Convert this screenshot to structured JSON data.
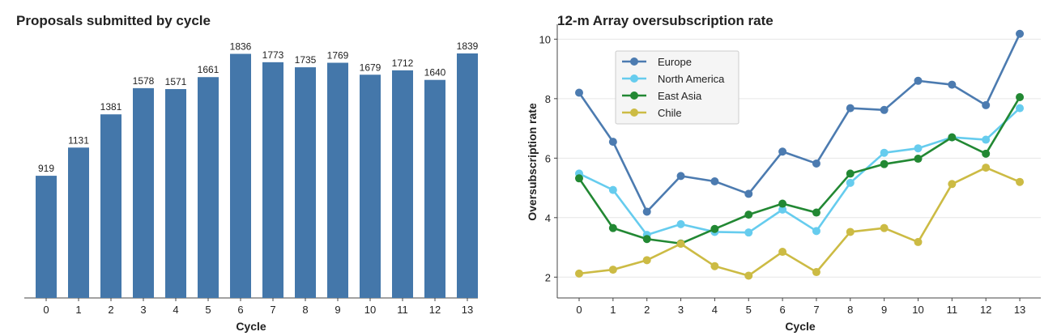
{
  "chart_data": [
    {
      "type": "bar",
      "title": "Proposals submitted by cycle",
      "xlabel": "Cycle",
      "ylabel": "",
      "categories": [
        "0",
        "1",
        "2",
        "3",
        "4",
        "5",
        "6",
        "7",
        "8",
        "9",
        "10",
        "11",
        "12",
        "13"
      ],
      "values": [
        919,
        1131,
        1381,
        1578,
        1571,
        1661,
        1836,
        1773,
        1735,
        1769,
        1679,
        1712,
        1640,
        1839
      ],
      "value_labels": [
        "919",
        "1131",
        "1381",
        "1578",
        "1571",
        "1661",
        "1836",
        "1773",
        "1735",
        "1769",
        "1679",
        "1712",
        "1640",
        "1839"
      ],
      "ylim": [
        0,
        1900
      ],
      "grid": false,
      "colors": {
        "bar": "#4477aa"
      }
    },
    {
      "type": "line",
      "title": "12-m Array oversubscription rate",
      "xlabel": "Cycle",
      "ylabel": "Oversubscription rate",
      "x": [
        0,
        1,
        2,
        3,
        4,
        5,
        6,
        7,
        8,
        9,
        10,
        11,
        12,
        13
      ],
      "xticks": [
        "0",
        "1",
        "2",
        "3",
        "4",
        "5",
        "6",
        "7",
        "8",
        "9",
        "10",
        "11",
        "12",
        "13"
      ],
      "yticks": [
        "2",
        "4",
        "6",
        "8",
        "10"
      ],
      "ylim": [
        1.3,
        10.5
      ],
      "grid": true,
      "legend_position": "top-left",
      "series": [
        {
          "name": "Europe",
          "color": "#4c7bb0",
          "values": [
            8.2,
            6.55,
            4.2,
            5.4,
            5.22,
            4.8,
            6.22,
            5.82,
            7.68,
            7.62,
            8.6,
            8.47,
            7.78,
            10.18
          ]
        },
        {
          "name": "North America",
          "color": "#66ccee",
          "values": [
            5.48,
            4.93,
            3.42,
            3.78,
            3.52,
            3.5,
            4.27,
            3.55,
            5.17,
            6.18,
            6.33,
            6.7,
            6.62,
            7.68
          ]
        },
        {
          "name": "East Asia",
          "color": "#228833",
          "values": [
            5.32,
            3.65,
            3.28,
            3.13,
            3.62,
            4.1,
            4.47,
            4.17,
            5.48,
            5.8,
            5.98,
            6.7,
            6.15,
            8.05
          ]
        },
        {
          "name": "Chile",
          "color": "#ccbb44",
          "values": [
            2.12,
            2.25,
            2.57,
            3.12,
            2.37,
            2.05,
            2.85,
            2.17,
            3.52,
            3.65,
            3.18,
            5.13,
            5.68,
            5.2
          ]
        }
      ]
    }
  ]
}
